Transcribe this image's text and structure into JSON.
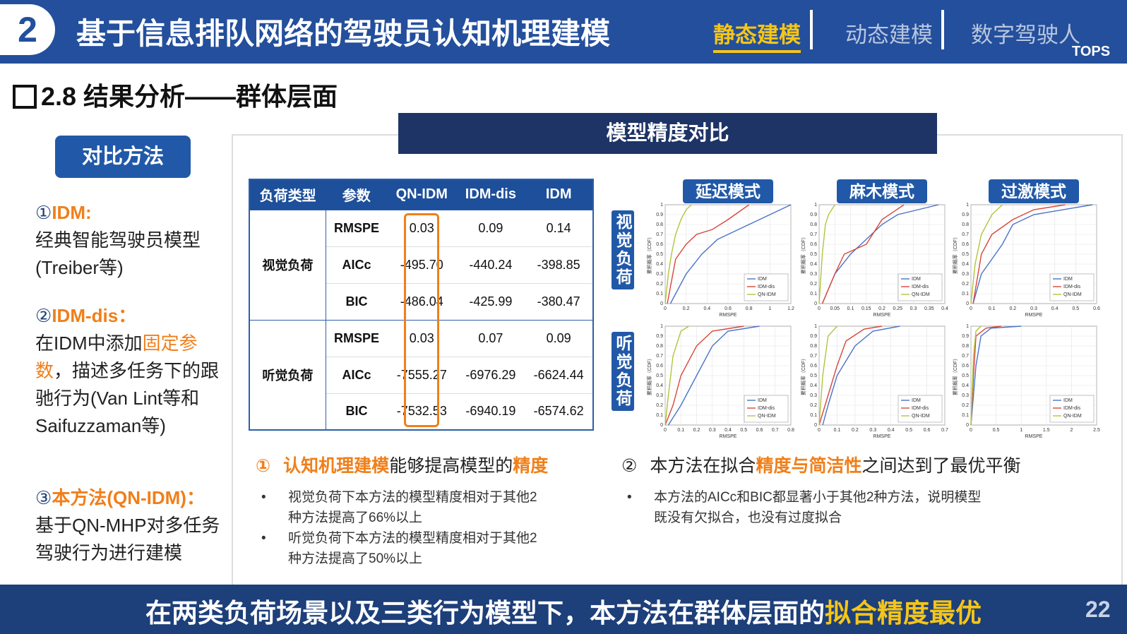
{
  "header": {
    "number": "2",
    "title": "基于信息排队网络的驾驶员认知机理建模",
    "tabs": [
      "静态建模",
      "动态建模",
      "数字驾驶人"
    ],
    "active_tab": 0,
    "logo": "TOPS"
  },
  "section_title": "2.8 结果分析——群体层面",
  "sidebar": {
    "button": "对比方法",
    "items": [
      {
        "marker": "①",
        "label": "IDM:",
        "body": [
          {
            "text": "经典智能驾驶员模型(Treiber等)"
          }
        ]
      },
      {
        "marker": "②",
        "label": "IDM-dis：",
        "body": [
          {
            "text": "在IDM中添加"
          },
          {
            "text": "固定参数",
            "emph": true
          },
          {
            "text": "，描述多任务下的跟驰行为(Van Lint等和Saifuzzaman等)"
          }
        ]
      },
      {
        "marker": "③",
        "label": "本方法(QN-IDM)：",
        "body": [
          {
            "text": "基于QN-MHP对多任务驾驶行为进行建模"
          }
        ]
      }
    ]
  },
  "panel_title": "模型精度对比",
  "table": {
    "headers": [
      "负荷类型",
      "参数",
      "QN-IDM",
      "IDM-dis",
      "IDM"
    ],
    "highlight_column": 2,
    "groups": [
      {
        "name": "视觉负荷",
        "rows": [
          [
            "RMSPE",
            "0.03",
            "0.09",
            "0.14"
          ],
          [
            "AICc",
            "-495.70",
            "-440.24",
            "-398.85"
          ],
          [
            "BIC",
            "-486.04",
            "-425.99",
            "-380.47"
          ]
        ]
      },
      {
        "name": "听觉负荷",
        "rows": [
          [
            "RMSPE",
            "0.03",
            "0.07",
            "0.09"
          ],
          [
            "AICc",
            "-7555.27",
            "-6976.29",
            "-6624.44"
          ],
          [
            "BIC",
            "-7532.53",
            "-6940.19",
            "-6574.62"
          ]
        ]
      }
    ]
  },
  "plots": {
    "columns": [
      "延迟模式",
      "麻木模式",
      "过激模式"
    ],
    "rows": [
      "视觉负荷",
      "听觉负荷"
    ],
    "xlabel": "RMSPE",
    "ylabel": "累积概率（CDF）",
    "ylim": [
      0,
      1
    ],
    "yticks": [
      0,
      0.1,
      0.2,
      0.3,
      0.4,
      0.5,
      0.6,
      0.7,
      0.8,
      0.9,
      1
    ],
    "series": [
      {
        "name": "IDM",
        "color": "#4a72c9"
      },
      {
        "name": "IDM-dis",
        "color": "#d9463a"
      },
      {
        "name": "QN-IDM",
        "color": "#b2c43c"
      }
    ],
    "panels": [
      {
        "xlim": [
          0,
          1.2
        ],
        "xticks": [
          0,
          0.2,
          0.4,
          0.6,
          0.8,
          1,
          1.2
        ],
        "curves": [
          {
            "x": [
              0.05,
              0.2,
              0.35,
              0.5,
              0.7,
              0.9,
              1.2
            ],
            "y": [
              0,
              0.3,
              0.5,
              0.65,
              0.75,
              0.85,
              1
            ]
          },
          {
            "x": [
              0.02,
              0.1,
              0.2,
              0.3,
              0.45,
              0.6,
              0.8
            ],
            "y": [
              0,
              0.45,
              0.6,
              0.7,
              0.75,
              0.85,
              1
            ]
          },
          {
            "x": [
              0,
              0.03,
              0.06,
              0.1,
              0.15,
              0.2,
              0.25
            ],
            "y": [
              0,
              0.3,
              0.5,
              0.7,
              0.85,
              0.95,
              1
            ]
          }
        ]
      },
      {
        "xlim": [
          0,
          0.4
        ],
        "xticks": [
          0,
          0.05,
          0.1,
          0.15,
          0.2,
          0.25,
          0.3,
          0.35,
          0.4
        ],
        "curves": [
          {
            "x": [
              0.01,
              0.05,
              0.1,
              0.2,
              0.25,
              0.38
            ],
            "y": [
              0,
              0.3,
              0.5,
              0.8,
              0.9,
              1
            ]
          },
          {
            "x": [
              0.01,
              0.05,
              0.08,
              0.15,
              0.2,
              0.27
            ],
            "y": [
              0,
              0.3,
              0.5,
              0.6,
              0.85,
              1
            ]
          },
          {
            "x": [
              0,
              0.01,
              0.02,
              0.03,
              0.05
            ],
            "y": [
              0,
              0.5,
              0.8,
              0.9,
              1
            ]
          }
        ]
      },
      {
        "xlim": [
          0,
          0.6
        ],
        "xticks": [
          0,
          0.1,
          0.2,
          0.3,
          0.4,
          0.5,
          0.6
        ],
        "curves": [
          {
            "x": [
              0.01,
              0.05,
              0.15,
              0.2,
              0.3,
              0.58
            ],
            "y": [
              0,
              0.3,
              0.6,
              0.8,
              0.9,
              1
            ]
          },
          {
            "x": [
              0.01,
              0.05,
              0.1,
              0.2,
              0.3,
              0.45
            ],
            "y": [
              0,
              0.5,
              0.7,
              0.85,
              0.95,
              1
            ]
          },
          {
            "x": [
              0,
              0.02,
              0.05,
              0.1,
              0.15
            ],
            "y": [
              0,
              0.4,
              0.7,
              0.9,
              1
            ]
          }
        ]
      },
      {
        "xlim": [
          0,
          0.8
        ],
        "xticks": [
          0,
          0.1,
          0.2,
          0.3,
          0.4,
          0.5,
          0.6,
          0.7,
          0.8
        ],
        "curves": [
          {
            "x": [
              0.02,
              0.1,
              0.2,
              0.3,
              0.4,
              0.6
            ],
            "y": [
              0,
              0.2,
              0.5,
              0.8,
              0.95,
              1
            ]
          },
          {
            "x": [
              0,
              0.05,
              0.1,
              0.2,
              0.3,
              0.5
            ],
            "y": [
              0,
              0.2,
              0.5,
              0.8,
              0.95,
              1
            ]
          },
          {
            "x": [
              0,
              0.02,
              0.05,
              0.1,
              0.15
            ],
            "y": [
              0,
              0.3,
              0.7,
              0.95,
              1
            ]
          }
        ]
      },
      {
        "xlim": [
          0,
          0.7
        ],
        "xticks": [
          0,
          0.1,
          0.2,
          0.3,
          0.4,
          0.5,
          0.6,
          0.7
        ],
        "curves": [
          {
            "x": [
              0.02,
              0.05,
              0.1,
              0.2,
              0.3,
              0.45
            ],
            "y": [
              0,
              0.2,
              0.5,
              0.8,
              0.95,
              1
            ]
          },
          {
            "x": [
              0,
              0.05,
              0.1,
              0.15,
              0.25,
              0.35
            ],
            "y": [
              0,
              0.3,
              0.6,
              0.85,
              0.97,
              1
            ]
          },
          {
            "x": [
              0,
              0.02,
              0.05,
              0.1
            ],
            "y": [
              0,
              0.5,
              0.9,
              1
            ]
          }
        ]
      },
      {
        "xlim": [
          0,
          2.5
        ],
        "xticks": [
          0,
          0.5,
          1,
          1.5,
          2,
          2.5
        ],
        "curves": [
          {
            "x": [
              0,
              0.1,
              0.2,
              0.4,
              1
            ],
            "y": [
              0,
              0.6,
              0.9,
              0.98,
              1
            ]
          },
          {
            "x": [
              0,
              0.05,
              0.1,
              0.3,
              0.6
            ],
            "y": [
              0,
              0.5,
              0.9,
              0.98,
              1
            ]
          },
          {
            "x": [
              0,
              0.05,
              0.1,
              0.2
            ],
            "y": [
              0,
              0.7,
              0.95,
              1
            ]
          }
        ]
      }
    ]
  },
  "findings": [
    {
      "marker": "①",
      "title": [
        {
          "text": "认知机理建模",
          "emph": true
        },
        {
          "text": "能够提高模型的"
        },
        {
          "text": "精度",
          "emph": true
        }
      ],
      "bullets": [
        "视觉负荷下本方法的模型精度相对于其他2种方法提高了66%以上",
        "听觉负荷下本方法的模型精度相对于其他2种方法提高了50%以上"
      ]
    },
    {
      "marker": "②",
      "title": [
        {
          "text": "本方法在拟合"
        },
        {
          "text": "精度与简洁性",
          "emph": true
        },
        {
          "text": "之间达到了最优平衡"
        }
      ],
      "bullets": [
        "本方法的AICc和BIC都显著小于其他2种方法，说明模型既没有欠拟合，也没有过度拟合"
      ]
    }
  ],
  "footer": {
    "text": "在两类负荷场景以及三类行为模型下，本方法在群体层面的",
    "highlight": "拟合精度最优",
    "page": "22"
  }
}
